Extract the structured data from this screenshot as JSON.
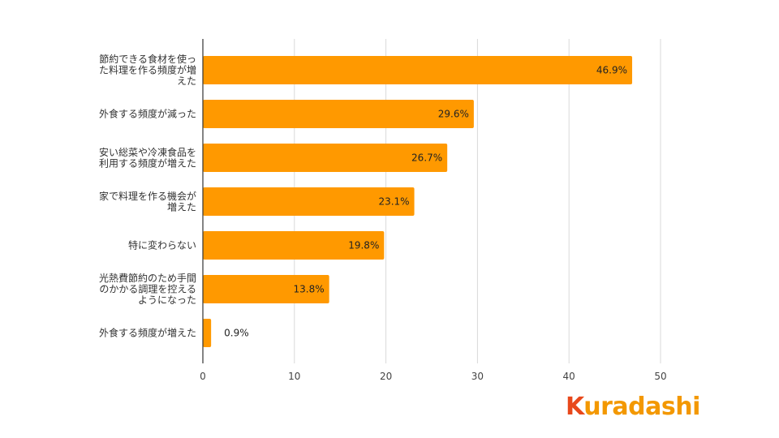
{
  "chart_data": {
    "type": "bar",
    "orientation": "horizontal",
    "categories": [
      "節約できる食材を使った料理を作る頻度が増えた",
      "外食する頻度が減った",
      "安い総菜や冷凍食品を利用する頻度が増えた",
      "家で料理を作る機会が増えた",
      "特に変わらない",
      "光熱費節約のため手間のかかる調理を控えるようになった",
      "外食する頻度が増えた"
    ],
    "category_lines": [
      [
        "節約できる食材を使っ",
        "た料理を作る頻度が増",
        "えた"
      ],
      [
        "外食する頻度が減った"
      ],
      [
        "安い総菜や冷凍食品を",
        "利用する頻度が増えた"
      ],
      [
        "家で料理を作る機会が",
        "増えた"
      ],
      [
        "特に変わらない"
      ],
      [
        "光熱費節約のため手間",
        "のかかる調理を控える",
        "ようになった"
      ],
      [
        "外食する頻度が増えた"
      ]
    ],
    "values": [
      46.9,
      29.6,
      26.7,
      23.1,
      19.8,
      13.8,
      0.9
    ],
    "value_labels": [
      "46.9%",
      "29.6%",
      "26.7%",
      "23.1%",
      "19.8%",
      "13.8%",
      "0.9%"
    ],
    "xlim": [
      0,
      50
    ],
    "xticks": [
      0,
      10,
      20,
      30,
      40,
      50
    ],
    "grid": true,
    "title": "",
    "xlabel": "",
    "ylabel": "",
    "bar_color": "#FF9900"
  },
  "brand": {
    "logo_first": "K",
    "logo_rest": "uradashi",
    "logo_first_color": "#E8481B",
    "logo_color": "#F39800"
  }
}
